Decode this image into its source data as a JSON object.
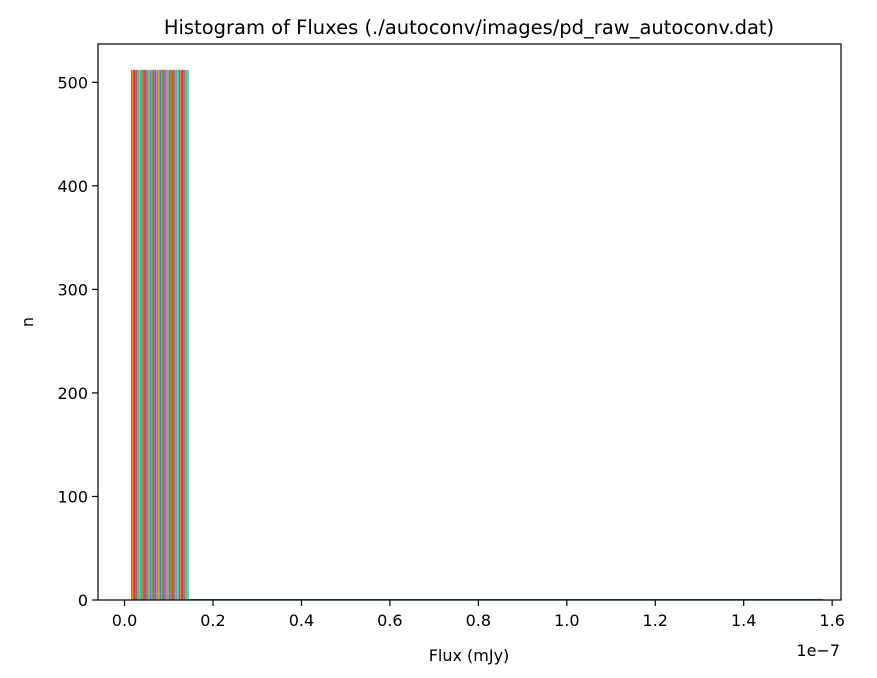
{
  "chart_data": {
    "type": "bar",
    "title": "Histogram of Fluxes (./autoconv/images/pd_raw_autoconv.dat)",
    "xlabel": "Flux (mJy)",
    "ylabel": "n",
    "x_offset_label": "1e−7",
    "xlim": [
      -0.06,
      1.62
    ],
    "ylim": [
      0,
      537
    ],
    "x_ticks": [
      0.0,
      0.2,
      0.4,
      0.6,
      0.8,
      1.0,
      1.2,
      1.4,
      1.6
    ],
    "x_tick_labels": [
      "0.0",
      "0.2",
      "0.4",
      "0.6",
      "0.8",
      "1.0",
      "1.2",
      "1.4",
      "1.6"
    ],
    "y_ticks": [
      0,
      100,
      200,
      300,
      400,
      500
    ],
    "y_tick_labels": [
      "0",
      "100",
      "200",
      "300",
      "400",
      "500"
    ],
    "first_bin": {
      "x_start": 0.015,
      "x_end": 0.145,
      "count": 512
    },
    "other_bins": {
      "x_start": 0.145,
      "x_end": 1.58,
      "count": 1
    },
    "series_count": 60,
    "grid": false,
    "legend": "none",
    "palette": [
      "#1f77b4",
      "#ff7f0e",
      "#2ca02c",
      "#d62728",
      "#9467bd",
      "#8c564b",
      "#e377c2",
      "#7f7f7f",
      "#bcbd22",
      "#17becf"
    ]
  }
}
